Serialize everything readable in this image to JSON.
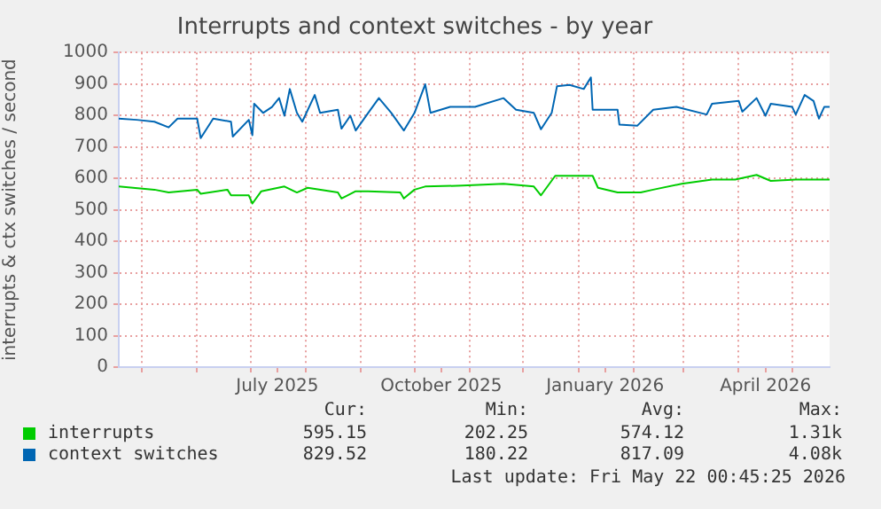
{
  "chart_data": {
    "type": "line",
    "title": "Interrupts and context switches - by year",
    "ylabel": "interrupts & ctx switches / second",
    "xlim": [
      "2025-04-18",
      "2026-05-22"
    ],
    "xticks": [
      {
        "value": "2025-05-01",
        "label": null
      },
      {
        "value": "2025-06-01",
        "label": null
      },
      {
        "value": "2025-07-01",
        "label": null
      },
      {
        "value": "2025-07-16",
        "label": "July 2025"
      },
      {
        "value": "2025-08-01",
        "label": null
      },
      {
        "value": "2025-09-01",
        "label": null
      },
      {
        "value": "2025-10-01",
        "label": null
      },
      {
        "value": "2025-10-16",
        "label": "October 2025"
      },
      {
        "value": "2025-11-01",
        "label": null
      },
      {
        "value": "2025-12-01",
        "label": null
      },
      {
        "value": "2026-01-01",
        "label": null
      },
      {
        "value": "2026-01-16",
        "label": "January 2026"
      },
      {
        "value": "2026-02-01",
        "label": null
      },
      {
        "value": "2026-03-01",
        "label": null
      },
      {
        "value": "2026-04-01",
        "label": null
      },
      {
        "value": "2026-04-16",
        "label": "April 2026"
      },
      {
        "value": "2026-05-01",
        "label": null
      }
    ],
    "ylim": [
      0,
      1000
    ],
    "yticks": [
      0,
      100,
      200,
      300,
      400,
      500,
      600,
      700,
      800,
      900,
      1000
    ],
    "grid": true,
    "legend": "bottom",
    "marker": "none",
    "line_style": "solid",
    "series": [
      {
        "name": "interrupts",
        "color": "#00cc00",
        "x": [
          "2025-04-18",
          "2025-05-08",
          "2025-05-16",
          "2025-06-01",
          "2025-06-03",
          "2025-06-18",
          "2025-06-20",
          "2025-06-30",
          "2025-07-02",
          "2025-07-07",
          "2025-07-20",
          "2025-07-27",
          "2025-08-02",
          "2025-08-19",
          "2025-08-21",
          "2025-08-29",
          "2025-09-05",
          "2025-09-23",
          "2025-09-25",
          "2025-10-01",
          "2025-10-07",
          "2025-10-28",
          "2025-11-20",
          "2025-12-07",
          "2025-12-11",
          "2025-12-19",
          "2026-01-09",
          "2026-01-12",
          "2026-01-23",
          "2026-02-05",
          "2026-02-12",
          "2026-02-28",
          "2026-03-17",
          "2026-03-30",
          "2026-04-11",
          "2026-04-19",
          "2026-05-03",
          "2026-05-16",
          "2026-05-22"
        ],
        "values": [
          574,
          564,
          555,
          564,
          551,
          564,
          546,
          546,
          520,
          559,
          574,
          555,
          570,
          555,
          536,
          559,
          559,
          555,
          536,
          564,
          574,
          577,
          583,
          574,
          546,
          608,
          608,
          570,
          555,
          555,
          564,
          583,
          596,
          596,
          611,
          592,
          596,
          596,
          596
        ]
      },
      {
        "name": "context switches",
        "color": "#0066b3",
        "x": [
          "2025-04-18",
          "2025-04-28",
          "2025-05-08",
          "2025-05-16",
          "2025-05-21",
          "2025-06-01",
          "2025-06-03",
          "2025-06-10",
          "2025-06-20",
          "2025-06-21",
          "2025-06-30",
          "2025-07-02",
          "2025-07-03",
          "2025-07-08",
          "2025-07-13",
          "2025-07-17",
          "2025-07-20",
          "2025-07-23",
          "2025-07-27",
          "2025-07-30",
          "2025-08-06",
          "2025-08-09",
          "2025-08-19",
          "2025-08-21",
          "2025-08-26",
          "2025-08-29",
          "2025-09-05",
          "2025-09-11",
          "2025-09-18",
          "2025-09-25",
          "2025-10-01",
          "2025-10-07",
          "2025-10-10",
          "2025-10-21",
          "2025-11-04",
          "2025-11-20",
          "2025-11-27",
          "2025-12-07",
          "2025-12-11",
          "2025-12-17",
          "2025-12-20",
          "2025-12-27",
          "2026-01-04",
          "2026-01-08",
          "2026-01-09",
          "2026-01-23",
          "2026-01-24",
          "2026-02-03",
          "2026-02-12",
          "2026-02-25",
          "2026-03-14",
          "2026-03-17",
          "2026-04-01",
          "2026-04-03",
          "2026-04-11",
          "2026-04-16",
          "2026-04-19",
          "2026-05-01",
          "2026-05-03",
          "2026-05-08",
          "2026-05-13",
          "2026-05-16",
          "2026-05-19",
          "2026-05-22"
        ],
        "values": [
          790,
          786,
          780,
          762,
          790,
          790,
          728,
          790,
          780,
          733,
          786,
          737,
          837,
          808,
          827,
          855,
          799,
          884,
          808,
          780,
          865,
          808,
          818,
          758,
          799,
          752,
          808,
          855,
          808,
          752,
          808,
          899,
          808,
          827,
          827,
          855,
          818,
          808,
          756,
          808,
          893,
          897,
          884,
          921,
          818,
          818,
          771,
          767,
          818,
          827,
          803,
          837,
          846,
          812,
          855,
          799,
          837,
          827,
          803,
          865,
          846,
          790,
          827,
          827
        ]
      }
    ],
    "annotations": [
      "Cur:",
      "Min:",
      "Avg:",
      "Max:",
      "595.15",
      "202.25",
      "574.12",
      "1.31k",
      "829.52",
      "180.22",
      "817.09",
      "4.08k",
      "Last update: Fri May 22 00:45:25 2026"
    ]
  }
}
